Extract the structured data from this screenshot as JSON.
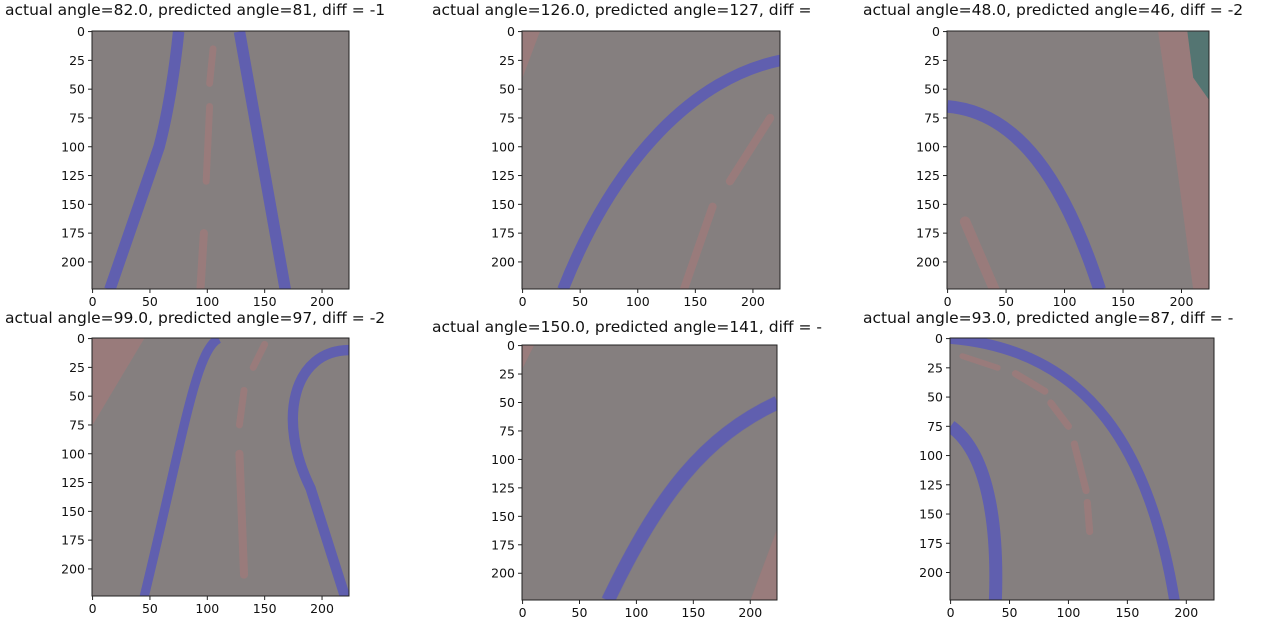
{
  "chart_data": [
    {
      "type": "image",
      "title": "actual angle=82.0, predicted angle=81, diff = -1",
      "xlim": [
        -0.5,
        223.5
      ],
      "ylim": [
        223.5,
        -0.5
      ],
      "xticks": [
        0,
        50,
        100,
        150,
        200
      ],
      "yticks": [
        0,
        25,
        50,
        75,
        100,
        125,
        150,
        175,
        200
      ]
    },
    {
      "type": "image",
      "title": "actual angle=126.0, predicted angle=127, diff =",
      "xlim": [
        -0.5,
        223.5
      ],
      "ylim": [
        223.5,
        -0.5
      ],
      "xticks": [
        0,
        50,
        100,
        150,
        200
      ],
      "yticks": [
        0,
        25,
        50,
        75,
        100,
        125,
        150,
        175,
        200
      ]
    },
    {
      "type": "image",
      "title": "actual angle=48.0, predicted angle=46, diff = -2",
      "xlim": [
        -0.5,
        223.5
      ],
      "ylim": [
        223.5,
        -0.5
      ],
      "xticks": [
        0,
        50,
        100,
        150,
        200
      ],
      "yticks": [
        0,
        25,
        50,
        75,
        100,
        125,
        150,
        175,
        200
      ]
    },
    {
      "type": "image",
      "title": "actual angle=99.0, predicted angle=97, diff = -2",
      "xlim": [
        -0.5,
        223.5
      ],
      "ylim": [
        223.5,
        -0.5
      ],
      "xticks": [
        0,
        50,
        100,
        150,
        200
      ],
      "yticks": [
        0,
        25,
        50,
        75,
        100,
        125,
        150,
        175,
        200
      ]
    },
    {
      "type": "image",
      "title": "actual angle=150.0, predicted angle=141, diff = -",
      "xlim": [
        -0.5,
        223.5
      ],
      "ylim": [
        223.5,
        -0.5
      ],
      "xticks": [
        0,
        50,
        100,
        150,
        200
      ],
      "yticks": [
        0,
        25,
        50,
        75,
        100,
        125,
        150,
        175,
        200
      ]
    },
    {
      "type": "image",
      "title": "actual angle=93.0, predicted angle=87, diff = -",
      "xlim": [
        -0.5,
        223.5
      ],
      "ylim": [
        223.5,
        -0.5
      ],
      "xticks": [
        0,
        50,
        100,
        150,
        200
      ],
      "yticks": [
        0,
        25,
        50,
        75,
        100,
        125,
        150,
        175,
        200
      ]
    }
  ]
}
